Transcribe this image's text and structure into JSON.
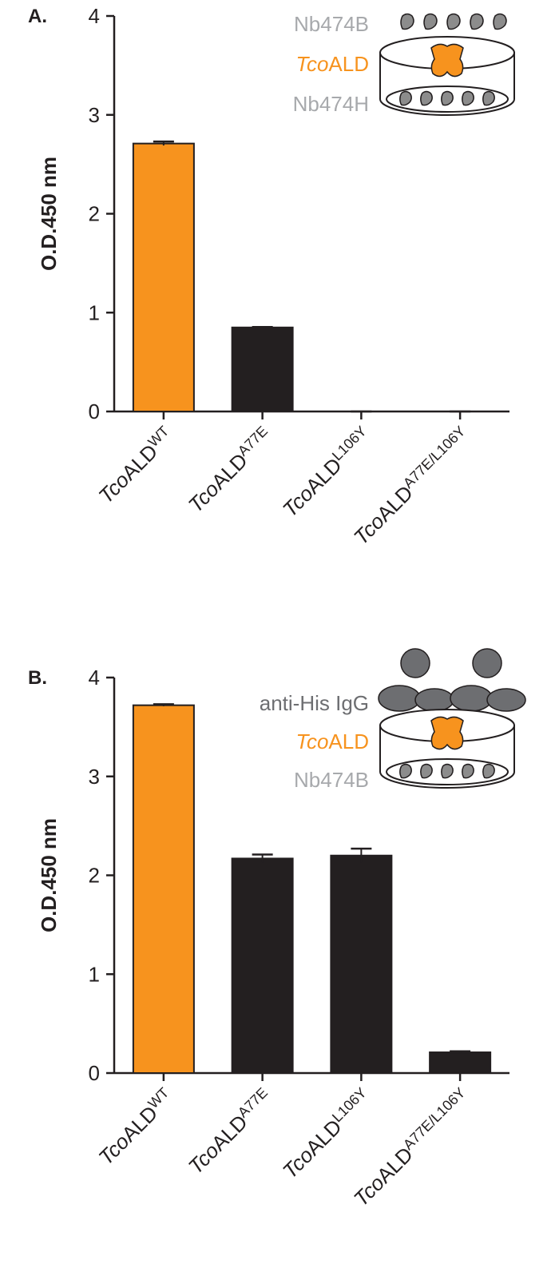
{
  "chart_data": [
    {
      "type": "bar",
      "panel_label": "A.",
      "ylabel": "O.D.450 nm",
      "categories": [
        {
          "italic": "Tco",
          "text": "ALD",
          "superscript": "WT"
        },
        {
          "italic": "Tco",
          "text": "ALD",
          "superscript": "A77E"
        },
        {
          "italic": "Tco",
          "text": "ALD",
          "superscript": "L106Y"
        },
        {
          "italic": "Tco",
          "text": "ALD",
          "superscript": "A77E/L106Y"
        }
      ],
      "values": [
        2.71,
        0.85,
        0,
        0
      ],
      "errors": [
        0.02,
        0.005,
        0,
        0
      ],
      "colors": [
        "#f7931e",
        "#231f20",
        "#231f20",
        "#231f20"
      ],
      "ylim": [
        0,
        4
      ],
      "yticks": [
        0,
        1,
        2,
        3,
        4
      ],
      "inset_labels": [
        {
          "text": "Nb474B",
          "color": "#a7a9ac"
        },
        {
          "italic": "Tco",
          "text": "ALD",
          "color": "#f7931e"
        },
        {
          "text": "Nb474H",
          "color": "#a7a9ac"
        }
      ]
    },
    {
      "type": "bar",
      "panel_label": "B.",
      "ylabel": "O.D.450 nm",
      "categories": [
        {
          "italic": "Tco",
          "text": "ALD",
          "superscript": "WT"
        },
        {
          "italic": "Tco",
          "text": "ALD",
          "superscript": "A77E"
        },
        {
          "italic": "Tco",
          "text": "ALD",
          "superscript": "L106Y"
        },
        {
          "italic": "Tco",
          "text": "ALD",
          "superscript": "A77E/L106Y"
        }
      ],
      "values": [
        3.72,
        2.17,
        2.2,
        0.21
      ],
      "errors": [
        0.01,
        0.04,
        0.07,
        0.01
      ],
      "colors": [
        "#f7931e",
        "#231f20",
        "#231f20",
        "#231f20"
      ],
      "ylim": [
        0,
        4
      ],
      "yticks": [
        0,
        1,
        2,
        3,
        4
      ],
      "inset_labels": [
        {
          "text": "anti-His IgG",
          "color": "#6d6e71"
        },
        {
          "italic": "Tco",
          "text": "ALD",
          "color": "#f7931e"
        },
        {
          "text": "Nb474B",
          "color": "#a7a9ac"
        }
      ]
    }
  ]
}
